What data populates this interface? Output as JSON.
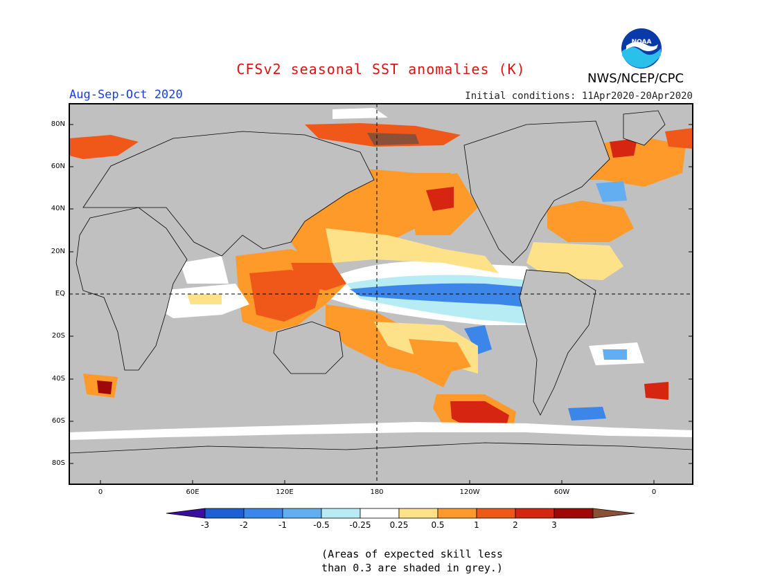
{
  "header": {
    "title": "CFSv2 seasonal SST anomalies (K)",
    "title_color": "#e01010",
    "season": "Aug-Sep-Oct 2020",
    "season_color": "#1a3fd6",
    "initial_conditions": "Initial conditions: 11Apr2020-20Apr2020",
    "agency": "NWS/NCEP/CPC",
    "logo_text": "NOAA"
  },
  "map": {
    "lat_labels": [
      "80N",
      "60N",
      "40N",
      "20N",
      "EQ",
      "20S",
      "40S",
      "60S",
      "80S"
    ],
    "lon_labels": [
      "0",
      "60E",
      "120E",
      "180",
      "120W",
      "60W",
      "0"
    ],
    "land_color": "#c0c0c0",
    "ocean_default": "#c0c0c0"
  },
  "colorbar": {
    "labels": [
      "-3",
      "-2",
      "-1",
      "-0.5",
      "-0.25",
      "0.25",
      "0.5",
      "1",
      "2",
      "3"
    ],
    "colors": [
      "#3a0f9e",
      "#1f5fd4",
      "#3b86e8",
      "#62aef0",
      "#b8ecf4",
      "#ffffff",
      "#fde28a",
      "#fd9a2a",
      "#f0581a",
      "#d62510",
      "#a00808",
      "#8b5138"
    ]
  },
  "note": {
    "line1": "(Areas of expected skill less",
    "line2": "than 0.3 are shaded in grey.)"
  }
}
